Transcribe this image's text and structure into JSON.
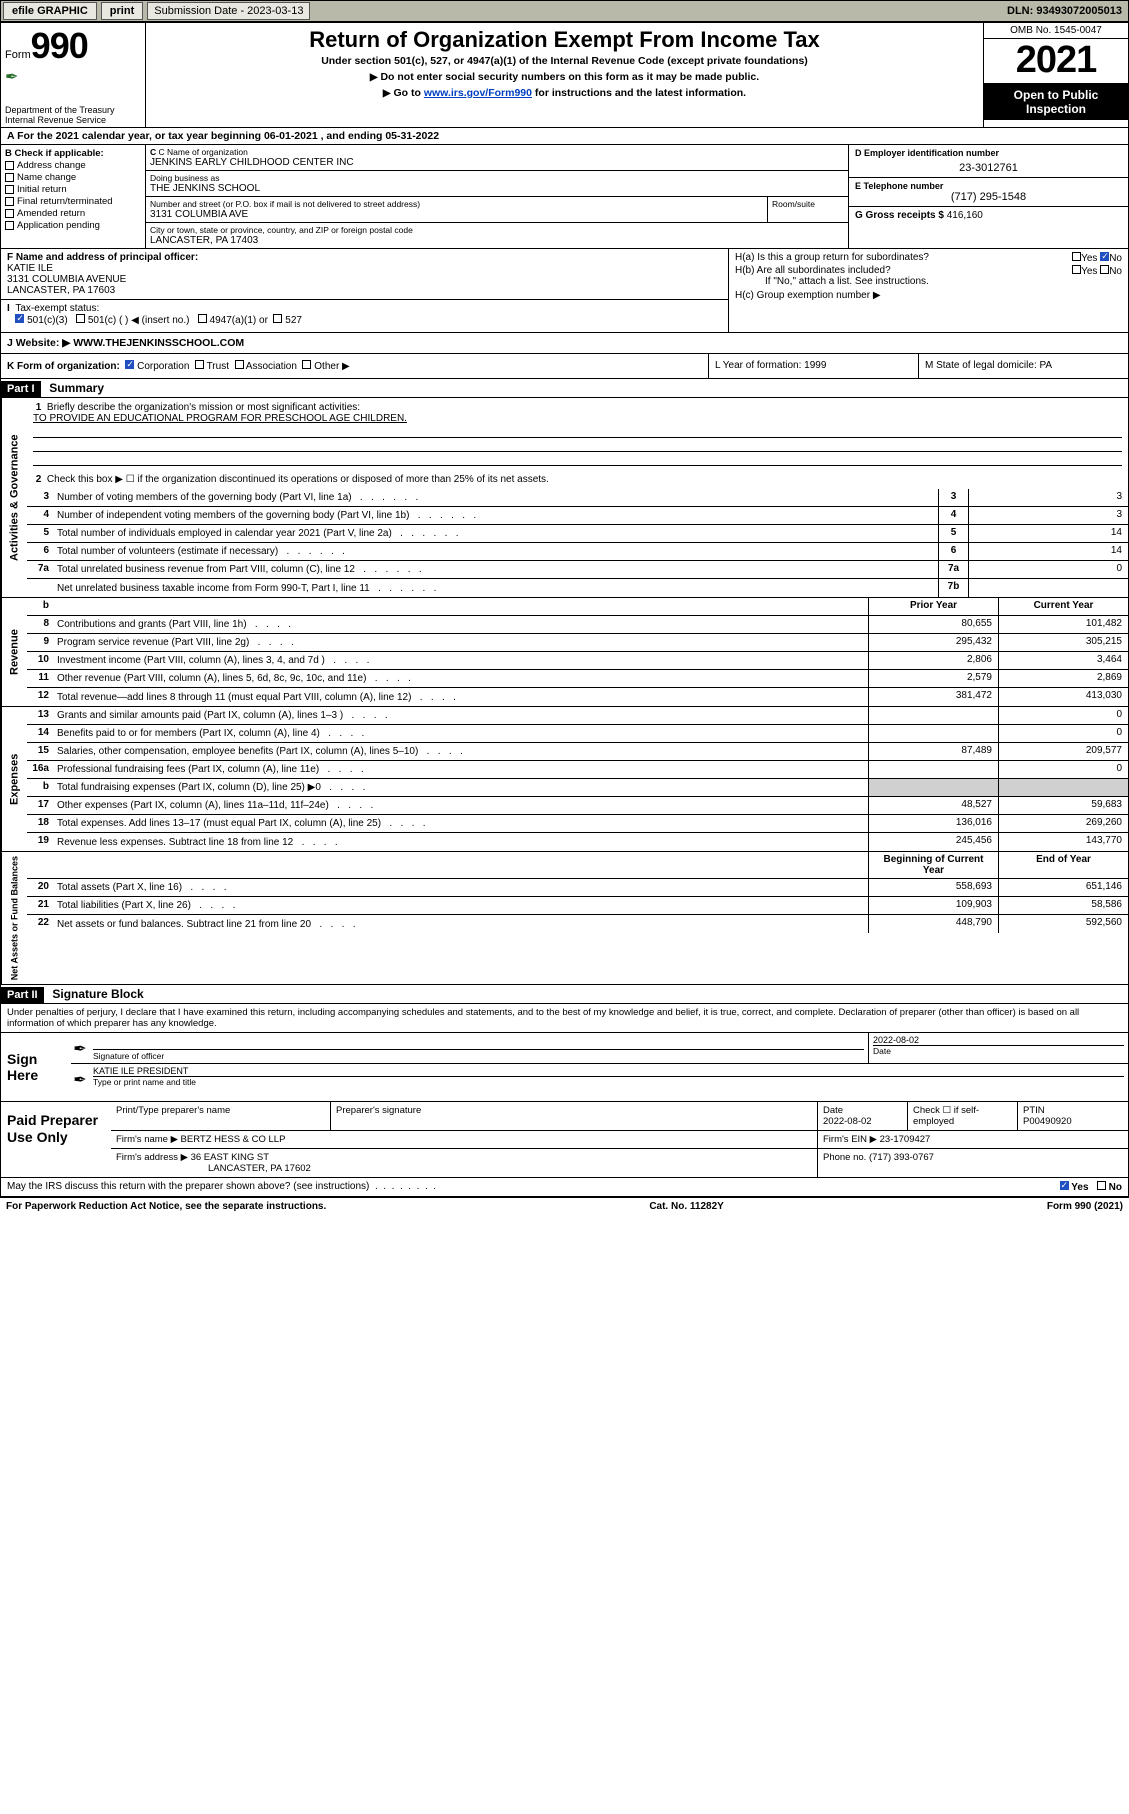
{
  "topbar": {
    "efile": "efile GRAPHIC",
    "print": "print",
    "submission": "Submission Date - 2023-03-13",
    "dln": "DLN: 93493072005013"
  },
  "header": {
    "form_word": "Form",
    "form_num": "990",
    "dept": "Department of the Treasury",
    "irs": "Internal Revenue Service",
    "title": "Return of Organization Exempt From Income Tax",
    "sub": "Under section 501(c), 527, or 4947(a)(1) of the Internal Revenue Code (except private foundations)",
    "note1": "Do not enter social security numbers on this form as it may be made public.",
    "note2_pre": "Go to ",
    "note2_link": "www.irs.gov/Form990",
    "note2_post": " for instructions and the latest information.",
    "omb": "OMB No. 1545-0047",
    "year": "2021",
    "open": "Open to Public Inspection"
  },
  "rowA": "A For the 2021 calendar year, or tax year beginning 06-01-2021   , and ending 05-31-2022",
  "colB": {
    "title": "B Check if applicable:",
    "items": [
      "Address change",
      "Name change",
      "Initial return",
      "Final return/terminated",
      "Amended return",
      "Application pending"
    ]
  },
  "colC": {
    "name_lbl": "C Name of organization",
    "name": "JENKINS EARLY CHILDHOOD CENTER INC",
    "dba_lbl": "Doing business as",
    "dba": "THE JENKINS SCHOOL",
    "street_lbl": "Number and street (or P.O. box if mail is not delivered to street address)",
    "street": "3131 COLUMBIA AVE",
    "suite_lbl": "Room/suite",
    "city_lbl": "City or town, state or province, country, and ZIP or foreign postal code",
    "city": "LANCASTER, PA  17403"
  },
  "colDE": {
    "d_lbl": "D Employer identification number",
    "d_val": "23-3012761",
    "e_lbl": "E Telephone number",
    "e_val": "(717) 295-1548",
    "g_lbl": "G Gross receipts $",
    "g_val": "416,160"
  },
  "rowF": {
    "f_lbl": "F Name and address of principal officer:",
    "f_name": "KATIE ILE",
    "f_addr1": "3131 COLUMBIA AVENUE",
    "f_addr2": "LANCASTER, PA  17603",
    "i_lbl": "Tax-exempt status:",
    "i_501c3": "501(c)(3)",
    "i_501c": "501(c) (  ) ◀ (insert no.)",
    "i_4947": "4947(a)(1) or",
    "i_527": "527"
  },
  "rowH": {
    "ha": "H(a)  Is this a group return for subordinates?",
    "hb": "H(b)  Are all subordinates included?",
    "hb_note": "If \"No,\" attach a list. See instructions.",
    "hc": "H(c)  Group exemption number ▶",
    "yes": "Yes",
    "no": "No"
  },
  "rowJ": {
    "lbl": "J  Website: ▶",
    "val": " WWW.THEJENKINSSCHOOL.COM"
  },
  "rowK": "K Form of organization:",
  "rowK_opts": [
    "Corporation",
    "Trust",
    "Association",
    "Other ▶"
  ],
  "rowL": "L Year of formation: 1999",
  "rowM": "M State of legal domicile: PA",
  "part1": {
    "hdr": "Part I",
    "title": "Summary",
    "l1": "Briefly describe the organization's mission or most significant activities:",
    "mission": "TO PROVIDE AN EDUCATIONAL PROGRAM FOR PRESCHOOL AGE CHILDREN.",
    "l2": "Check this box ▶ ☐  if the organization discontinued its operations or disposed of more than 25% of its net assets.",
    "side_ag": "Activities & Governance",
    "side_rev": "Revenue",
    "side_exp": "Expenses",
    "side_na": "Net Assets or Fund Balances",
    "prior": "Prior Year",
    "current": "Current Year",
    "boy": "Beginning of Current Year",
    "eoy": "End of Year",
    "lines_ag": [
      {
        "n": "3",
        "d": "Number of voting members of the governing body (Part VI, line 1a)",
        "box": "3",
        "v": "3"
      },
      {
        "n": "4",
        "d": "Number of independent voting members of the governing body (Part VI, line 1b)",
        "box": "4",
        "v": "3"
      },
      {
        "n": "5",
        "d": "Total number of individuals employed in calendar year 2021 (Part V, line 2a)",
        "box": "5",
        "v": "14"
      },
      {
        "n": "6",
        "d": "Total number of volunteers (estimate if necessary)",
        "box": "6",
        "v": "14"
      },
      {
        "n": "7a",
        "d": "Total unrelated business revenue from Part VIII, column (C), line 12",
        "box": "7a",
        "v": "0"
      },
      {
        "n": "",
        "d": "Net unrelated business taxable income from Form 990-T, Part I, line 11",
        "box": "7b",
        "v": ""
      }
    ],
    "lines_rev": [
      {
        "n": "8",
        "d": "Contributions and grants (Part VIII, line 1h)",
        "p": "80,655",
        "c": "101,482"
      },
      {
        "n": "9",
        "d": "Program service revenue (Part VIII, line 2g)",
        "p": "295,432",
        "c": "305,215"
      },
      {
        "n": "10",
        "d": "Investment income (Part VIII, column (A), lines 3, 4, and 7d )",
        "p": "2,806",
        "c": "3,464"
      },
      {
        "n": "11",
        "d": "Other revenue (Part VIII, column (A), lines 5, 6d, 8c, 9c, 10c, and 11e)",
        "p": "2,579",
        "c": "2,869"
      },
      {
        "n": "12",
        "d": "Total revenue—add lines 8 through 11 (must equal Part VIII, column (A), line 12)",
        "p": "381,472",
        "c": "413,030"
      }
    ],
    "lines_exp": [
      {
        "n": "13",
        "d": "Grants and similar amounts paid (Part IX, column (A), lines 1–3 )",
        "p": "",
        "c": "0"
      },
      {
        "n": "14",
        "d": "Benefits paid to or for members (Part IX, column (A), line 4)",
        "p": "",
        "c": "0"
      },
      {
        "n": "15",
        "d": "Salaries, other compensation, employee benefits (Part IX, column (A), lines 5–10)",
        "p": "87,489",
        "c": "209,577"
      },
      {
        "n": "16a",
        "d": "Professional fundraising fees (Part IX, column (A), line 11e)",
        "p": "",
        "c": "0"
      },
      {
        "n": "b",
        "d": "Total fundraising expenses (Part IX, column (D), line 25) ▶0",
        "p": "GREY",
        "c": "GREY"
      },
      {
        "n": "17",
        "d": "Other expenses (Part IX, column (A), lines 11a–11d, 11f–24e)",
        "p": "48,527",
        "c": "59,683"
      },
      {
        "n": "18",
        "d": "Total expenses. Add lines 13–17 (must equal Part IX, column (A), line 25)",
        "p": "136,016",
        "c": "269,260"
      },
      {
        "n": "19",
        "d": "Revenue less expenses. Subtract line 18 from line 12",
        "p": "245,456",
        "c": "143,770"
      }
    ],
    "lines_na": [
      {
        "n": "20",
        "d": "Total assets (Part X, line 16)",
        "p": "558,693",
        "c": "651,146"
      },
      {
        "n": "21",
        "d": "Total liabilities (Part X, line 26)",
        "p": "109,903",
        "c": "58,586"
      },
      {
        "n": "22",
        "d": "Net assets or fund balances. Subtract line 21 from line 20",
        "p": "448,790",
        "c": "592,560"
      }
    ]
  },
  "part2": {
    "hdr": "Part II",
    "title": "Signature Block",
    "intro": "Under penalties of perjury, I declare that I have examined this return, including accompanying schedules and statements, and to the best of my knowledge and belief, it is true, correct, and complete. Declaration of preparer (other than officer) is based on all information of which preparer has any knowledge.",
    "sign_here": "Sign Here",
    "sig_officer": "Signature of officer",
    "sig_date": "Date",
    "sig_date_val": "2022-08-02",
    "name_title": "KATIE ILE  PRESIDENT",
    "name_title_lbl": "Type or print name and title",
    "paid": "Paid Preparer Use Only",
    "pt_name_lbl": "Print/Type preparer's name",
    "pt_sig_lbl": "Preparer's signature",
    "pt_date_lbl": "Date",
    "pt_date": "2022-08-02",
    "pt_self": "Check ☐ if self-employed",
    "ptin_lbl": "PTIN",
    "ptin": "P00490920",
    "firm_name_lbl": "Firm's name    ▶",
    "firm_name": "BERTZ HESS & CO LLP",
    "firm_ein_lbl": "Firm's EIN ▶",
    "firm_ein": "23-1709427",
    "firm_addr_lbl": "Firm's address ▶",
    "firm_addr1": "36 EAST KING ST",
    "firm_addr2": "LANCASTER, PA  17602",
    "phone_lbl": "Phone no.",
    "phone": "(717) 393-0767",
    "may_irs": "May the IRS discuss this return with the preparer shown above? (see instructions)",
    "paperwork": "For Paperwork Reduction Act Notice, see the separate instructions.",
    "cat": "Cat. No. 11282Y",
    "form_foot": "Form 990 (2021)"
  }
}
